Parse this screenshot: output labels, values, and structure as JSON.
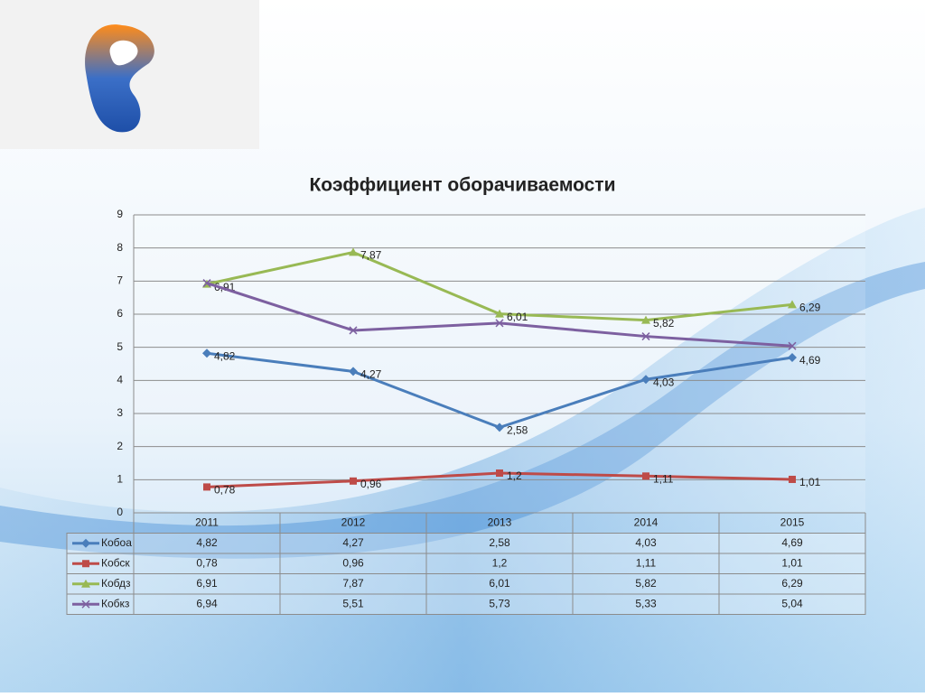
{
  "chart_data": {
    "type": "line",
    "title": "Коэффициент оборачиваемости",
    "categories": [
      "2011",
      "2012",
      "2013",
      "2014",
      "2015"
    ],
    "ylim": [
      0,
      9
    ],
    "yticks": [
      0,
      1,
      2,
      3,
      4,
      5,
      6,
      7,
      8,
      9
    ],
    "grid": true,
    "series": [
      {
        "name": "Кобоа",
        "color": "#4a7ebb",
        "marker": "diamond",
        "data_labels": true,
        "values": [
          4.82,
          4.27,
          2.58,
          4.03,
          4.69
        ],
        "value_labels": [
          "4,82",
          "4,27",
          "2,58",
          "4,03",
          "4,69"
        ]
      },
      {
        "name": "Кобск",
        "color": "#be4b48",
        "marker": "square",
        "data_labels": true,
        "values": [
          0.78,
          0.96,
          1.2,
          1.11,
          1.01
        ],
        "value_labels": [
          "0,78",
          "0,96",
          "1,2",
          "1,11",
          "1,01"
        ]
      },
      {
        "name": "Кобдз",
        "color": "#98b954",
        "marker": "triangle",
        "data_labels": true,
        "values": [
          6.91,
          7.87,
          6.01,
          5.82,
          6.29
        ],
        "value_labels": [
          "6,91",
          "7,87",
          "6,01",
          "5,82",
          "6,29"
        ]
      },
      {
        "name": "Кобкз",
        "color": "#7d60a0",
        "marker": "x",
        "data_labels": false,
        "values": [
          6.94,
          5.51,
          5.73,
          5.33,
          5.04
        ],
        "value_labels": [
          "6,94",
          "5,51",
          "5,73",
          "5,33",
          "5,04"
        ]
      }
    ]
  }
}
